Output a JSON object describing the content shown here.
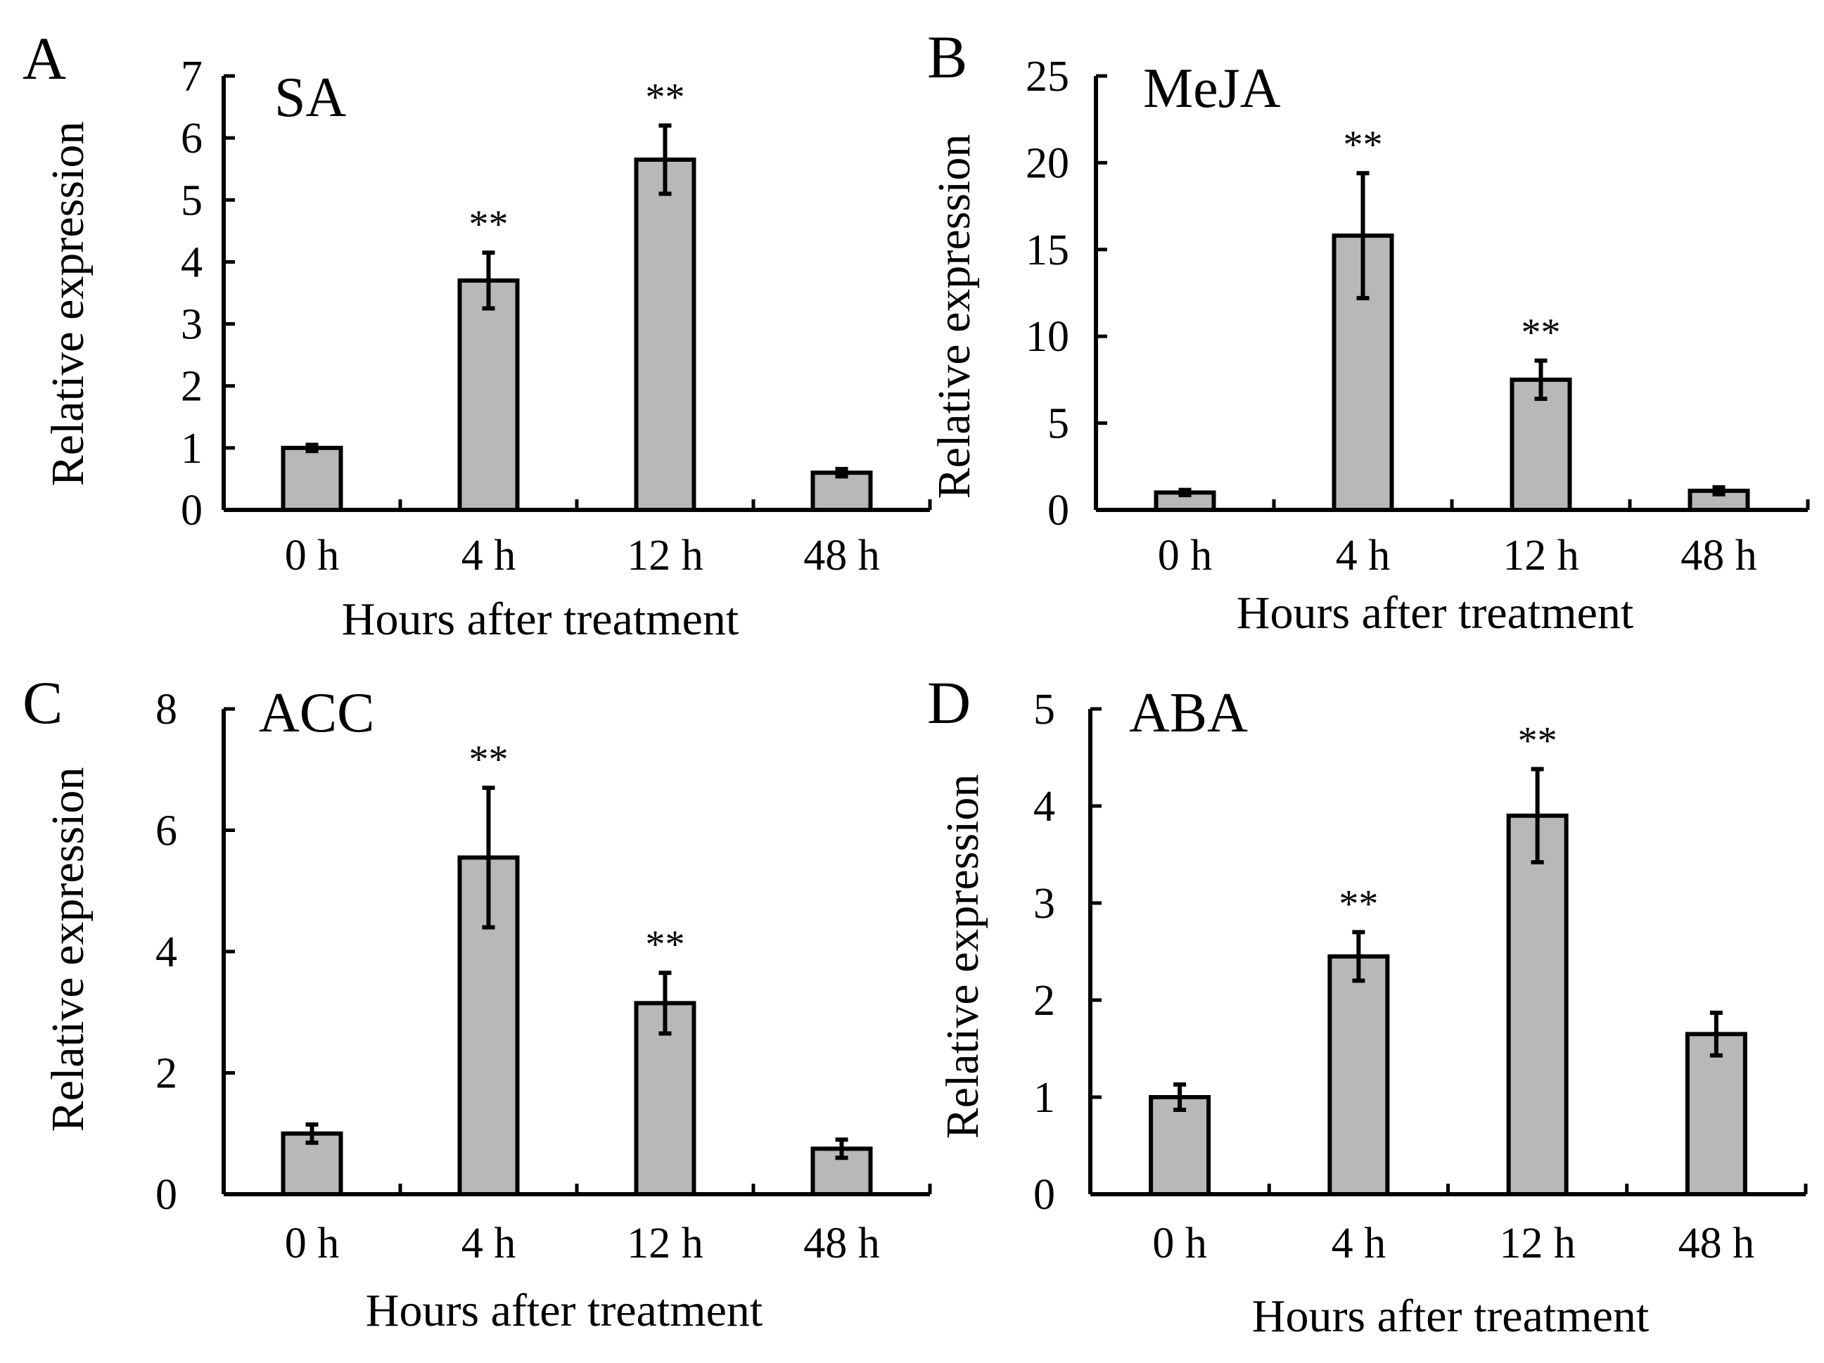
{
  "chart_data": [
    {
      "type": "bar",
      "panel": "A",
      "title": "SA",
      "xlabel": "Hours after treatment",
      "ylabel": "Relative expression",
      "categories": [
        "0 h",
        "4 h",
        "12 h",
        "48 h"
      ],
      "values": [
        1.0,
        3.7,
        5.65,
        0.6
      ],
      "errors": [
        0.05,
        0.45,
        0.55,
        0.06
      ],
      "significance": [
        "",
        "**",
        "**",
        ""
      ],
      "ylim": [
        0,
        7
      ],
      "yticks": [
        "0",
        "1",
        "2",
        "3",
        "4",
        "5",
        "6",
        "7"
      ],
      "grid": false,
      "bar_color": "#b8b8b8"
    },
    {
      "type": "bar",
      "panel": "B",
      "title": "MeJA",
      "xlabel": "Hours after treatment",
      "ylabel": "Relative expression",
      "categories": [
        "0 h",
        "4 h",
        "12 h",
        "48 h"
      ],
      "values": [
        1.0,
        15.8,
        7.5,
        1.1
      ],
      "errors": [
        0.15,
        3.6,
        1.1,
        0.2
      ],
      "significance": [
        "",
        "**",
        "**",
        ""
      ],
      "ylim": [
        0,
        25
      ],
      "yticks": [
        "0",
        "5",
        "10",
        "15",
        "20",
        "25"
      ],
      "grid": false,
      "bar_color": "#b8b8b8"
    },
    {
      "type": "bar",
      "panel": "C",
      "title": "ACC",
      "xlabel": "Hours after treatment",
      "ylabel": "Relative expression",
      "categories": [
        "0 h",
        "4 h",
        "12 h",
        "48 h"
      ],
      "values": [
        1.0,
        5.55,
        3.15,
        0.75
      ],
      "errors": [
        0.15,
        1.15,
        0.5,
        0.15
      ],
      "significance": [
        "",
        "**",
        "**",
        ""
      ],
      "ylim": [
        0,
        8
      ],
      "yticks": [
        "0",
        "2",
        "4",
        "6",
        "8"
      ],
      "grid": false,
      "bar_color": "#b8b8b8"
    },
    {
      "type": "bar",
      "panel": "D",
      "title": "ABA",
      "xlabel": "Hours after treatment",
      "ylabel": "Relative expression",
      "categories": [
        "0 h",
        "4 h",
        "12 h",
        "48 h"
      ],
      "values": [
        1.0,
        2.45,
        3.9,
        1.65
      ],
      "errors": [
        0.13,
        0.25,
        0.48,
        0.22
      ],
      "significance": [
        "",
        "**",
        "**",
        ""
      ],
      "ylim": [
        0,
        5
      ],
      "yticks": [
        "0",
        "1",
        "2",
        "3",
        "4",
        "5"
      ],
      "grid": false,
      "bar_color": "#b8b8b8"
    }
  ]
}
